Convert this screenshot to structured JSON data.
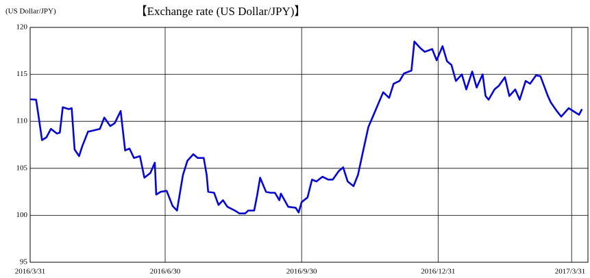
{
  "chart_data": {
    "type": "line",
    "title": "【Exchange rate (US Dollar/JPY)】",
    "y_label": "(US Dollar/JPY)",
    "x": [
      "2016/3/31",
      "2016/4/4",
      "2016/4/6",
      "2016/4/8",
      "2016/4/11",
      "2016/4/14",
      "2016/4/18",
      "2016/4/20",
      "2016/4/22",
      "2016/4/26",
      "2016/4/28",
      "2016/4/30",
      "2016/5/3",
      "2016/5/5",
      "2016/5/9",
      "2016/5/12",
      "2016/5/17",
      "2016/5/20",
      "2016/5/24",
      "2016/5/27",
      "2016/5/31",
      "2016/6/3",
      "2016/6/6",
      "2016/6/9",
      "2016/6/13",
      "2016/6/16",
      "2016/6/20",
      "2016/6/23",
      "2016/6/24",
      "2016/6/27",
      "2016/7/1",
      "2016/7/5",
      "2016/7/8",
      "2016/7/12",
      "2016/7/15",
      "2016/7/19",
      "2016/7/22",
      "2016/7/26",
      "2016/7/28",
      "2016/7/29",
      "2016/8/2",
      "2016/8/5",
      "2016/8/8",
      "2016/8/11",
      "2016/8/16",
      "2016/8/19",
      "2016/8/23",
      "2016/8/25",
      "2016/8/29",
      "2016/8/31",
      "2016/9/2",
      "2016/9/6",
      "2016/9/9",
      "2016/9/12",
      "2016/9/15",
      "2016/9/16",
      "2016/9/21",
      "2016/9/26",
      "2016/9/28",
      "2016/9/30",
      "2016/10/4",
      "2016/10/7",
      "2016/10/10",
      "2016/10/14",
      "2016/10/18",
      "2016/10/21",
      "2016/10/25",
      "2016/10/28",
      "2016/10/31",
      "2016/11/4",
      "2016/11/7",
      "2016/11/10",
      "2016/11/14",
      "2016/11/17",
      "2016/11/21",
      "2016/11/24",
      "2016/11/28",
      "2016/12/1",
      "2016/12/5",
      "2016/12/8",
      "2016/12/13",
      "2016/12/15",
      "2016/12/19",
      "2016/12/22",
      "2016/12/27",
      "2016/12/30",
      "2017/1/3",
      "2017/1/6",
      "2017/1/9",
      "2017/1/12",
      "2017/1/16",
      "2017/1/19",
      "2017/1/23",
      "2017/1/26",
      "2017/1/30",
      "2017/2/1",
      "2017/2/3",
      "2017/2/7",
      "2017/2/10",
      "2017/2/14",
      "2017/2/17",
      "2017/2/21",
      "2017/2/24",
      "2017/2/28",
      "2017/3/3",
      "2017/3/7",
      "2017/3/10",
      "2017/3/15",
      "2017/3/17",
      "2017/3/21",
      "2017/3/24",
      "2017/3/29",
      "2017/4/3",
      "2017/4/5",
      "2017/4/7"
    ],
    "series": [
      {
        "name": "US Dollar/JPY",
        "color": "#0000ff",
        "values": [
          112.35,
          112.3,
          110.2,
          108.0,
          108.3,
          109.2,
          108.7,
          108.8,
          111.5,
          111.3,
          111.4,
          107.0,
          106.3,
          107.3,
          108.9,
          109.0,
          109.2,
          110.4,
          109.5,
          109.8,
          111.1,
          106.9,
          107.1,
          106.1,
          106.3,
          104.0,
          104.5,
          105.6,
          102.2,
          102.5,
          102.6,
          101.0,
          100.5,
          104.3,
          105.8,
          106.5,
          106.1,
          106.1,
          104.3,
          102.5,
          102.4,
          101.1,
          101.6,
          100.9,
          100.5,
          100.2,
          100.2,
          100.5,
          100.5,
          102.1,
          104.0,
          102.5,
          102.4,
          102.4,
          101.6,
          102.3,
          100.9,
          100.8,
          100.3,
          101.4,
          101.9,
          103.8,
          103.6,
          104.1,
          103.8,
          103.8,
          104.7,
          105.1,
          103.6,
          103.1,
          104.3,
          106.5,
          109.4,
          110.5,
          112.0,
          113.1,
          112.5,
          114.0,
          114.3,
          115.1,
          115.4,
          118.5,
          117.8,
          117.4,
          117.7,
          116.5,
          118.0,
          116.4,
          116.0,
          114.3,
          115.0,
          113.4,
          115.3,
          113.6,
          115.0,
          112.7,
          112.3,
          113.4,
          113.8,
          114.7,
          112.7,
          113.4,
          112.3,
          114.3,
          114.0,
          114.9,
          114.8,
          112.7,
          112.0,
          111.1,
          110.5,
          111.4,
          110.9,
          110.7,
          111.3
        ]
      }
    ],
    "xlim": [
      "2016/3/31",
      "2017/4/11"
    ],
    "xticks": [
      "2016/3/31",
      "2016/6/30",
      "2016/9/30",
      "2016/12/31",
      "2017/3/31"
    ],
    "ylim": [
      95,
      120
    ],
    "yticks": [
      95,
      100,
      105,
      110,
      115,
      120
    ],
    "grid": true
  }
}
